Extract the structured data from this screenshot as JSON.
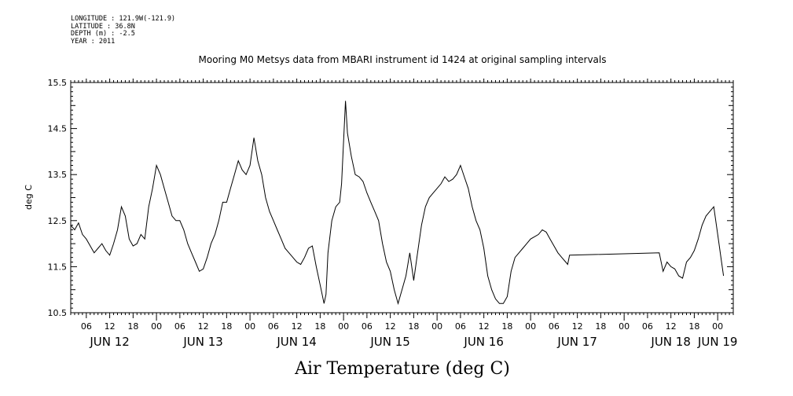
{
  "meta": {
    "longitude": "LONGITUDE : 121.9W(-121.9)",
    "latitude": "LATITUDE : 36.8N",
    "depth": "DEPTH (m) : -2.5",
    "year": "YEAR : 2011"
  },
  "chart_data": {
    "type": "line",
    "title": "Mooring M0 Metsys data from MBARI instrument id 1424 at original sampling intervals",
    "xlabel": "Air Temperature (deg C)",
    "ylabel": "deg C",
    "ylim": [
      10.5,
      15.5
    ],
    "yticks": [
      "10.5",
      "11.5",
      "12.5",
      "13.5",
      "14.5",
      "15.5"
    ],
    "xlim_hours": [
      2,
      172
    ],
    "hour_tick_labels": [
      {
        "h": 6,
        "label": "06"
      },
      {
        "h": 12,
        "label": "12"
      },
      {
        "h": 18,
        "label": "18"
      },
      {
        "h": 24,
        "label": "00"
      },
      {
        "h": 30,
        "label": "06"
      },
      {
        "h": 36,
        "label": "12"
      },
      {
        "h": 42,
        "label": "18"
      },
      {
        "h": 48,
        "label": "00"
      },
      {
        "h": 54,
        "label": "06"
      },
      {
        "h": 60,
        "label": "12"
      },
      {
        "h": 66,
        "label": "18"
      },
      {
        "h": 72,
        "label": "00"
      },
      {
        "h": 78,
        "label": "06"
      },
      {
        "h": 84,
        "label": "12"
      },
      {
        "h": 90,
        "label": "18"
      },
      {
        "h": 96,
        "label": "00"
      },
      {
        "h": 102,
        "label": "06"
      },
      {
        "h": 108,
        "label": "12"
      },
      {
        "h": 114,
        "label": "18"
      },
      {
        "h": 120,
        "label": "00"
      },
      {
        "h": 126,
        "label": "06"
      },
      {
        "h": 132,
        "label": "12"
      },
      {
        "h": 138,
        "label": "18"
      },
      {
        "h": 144,
        "label": "00"
      },
      {
        "h": 150,
        "label": "06"
      },
      {
        "h": 156,
        "label": "12"
      },
      {
        "h": 162,
        "label": "18"
      },
      {
        "h": 168,
        "label": "00"
      }
    ],
    "day_labels": [
      {
        "h": 12,
        "label": "JUN 12"
      },
      {
        "h": 36,
        "label": "JUN 13"
      },
      {
        "h": 60,
        "label": "JUN 14"
      },
      {
        "h": 84,
        "label": "JUN 15"
      },
      {
        "h": 108,
        "label": "JUN 16"
      },
      {
        "h": 132,
        "label": "JUN 17"
      },
      {
        "h": 156,
        "label": "JUN 18"
      },
      {
        "h": 168,
        "label": "JUN 19"
      }
    ],
    "series": [
      {
        "x": [
          2,
          3,
          4,
          5,
          6,
          7,
          8,
          9,
          10,
          11,
          12,
          13,
          14,
          15,
          16,
          17,
          18,
          19,
          20,
          21,
          22,
          23,
          24,
          25,
          26,
          27,
          28,
          29,
          30,
          31,
          32,
          33,
          34,
          35,
          36,
          37,
          38,
          39,
          40,
          41,
          42,
          43,
          44,
          45,
          46,
          47,
          48,
          49,
          50,
          51,
          52,
          53,
          54,
          55,
          56,
          57,
          58,
          59,
          60,
          61,
          62,
          63,
          64,
          65,
          66,
          67,
          67.5,
          68,
          69,
          70,
          71,
          71.5,
          72,
          72.5,
          73,
          74,
          75,
          76,
          77,
          78,
          79,
          80,
          81,
          82,
          83,
          84,
          85,
          86,
          87,
          88,
          89,
          90,
          91,
          92,
          93,
          94,
          95,
          96,
          97,
          98,
          99,
          100,
          101,
          102,
          103,
          104,
          105,
          106,
          107,
          108,
          109,
          110,
          111,
          112,
          113,
          114,
          115,
          116,
          117,
          118,
          119,
          120,
          121,
          122,
          123,
          124,
          125,
          126,
          127,
          128,
          129,
          129.5,
          130,
          153,
          154,
          155,
          156,
          157,
          158,
          159,
          160,
          161,
          162,
          163,
          164,
          165,
          166,
          167,
          168,
          169,
          169.5
        ],
        "y": [
          12.4,
          12.3,
          12.45,
          12.2,
          12.1,
          11.95,
          11.8,
          11.9,
          12.0,
          11.85,
          11.75,
          12.0,
          12.3,
          12.8,
          12.6,
          12.1,
          11.95,
          12.0,
          12.2,
          12.1,
          12.8,
          13.2,
          13.7,
          13.5,
          13.2,
          12.9,
          12.6,
          12.5,
          12.5,
          12.3,
          12.0,
          11.8,
          11.6,
          11.4,
          11.45,
          11.7,
          12.0,
          12.2,
          12.5,
          12.9,
          12.9,
          13.2,
          13.5,
          13.8,
          13.6,
          13.5,
          13.7,
          14.3,
          13.8,
          13.5,
          13.0,
          12.7,
          12.5,
          12.3,
          12.1,
          11.9,
          11.8,
          11.7,
          11.6,
          11.55,
          11.7,
          11.9,
          11.95,
          11.5,
          11.1,
          10.7,
          10.9,
          11.8,
          12.5,
          12.8,
          12.9,
          13.3,
          14.2,
          15.1,
          14.4,
          13.9,
          13.5,
          13.45,
          13.35,
          13.1,
          12.9,
          12.7,
          12.5,
          12.0,
          11.6,
          11.4,
          11.0,
          10.7,
          11.0,
          11.3,
          11.8,
          11.2,
          11.8,
          12.4,
          12.8,
          13.0,
          13.1,
          13.2,
          13.3,
          13.45,
          13.35,
          13.4,
          13.5,
          13.7,
          13.45,
          13.2,
          12.8,
          12.5,
          12.3,
          11.9,
          11.3,
          11.0,
          10.8,
          10.7,
          10.7,
          10.85,
          11.4,
          11.7,
          11.8,
          11.9,
          12.0,
          12.1,
          12.15,
          12.2,
          12.3,
          12.25,
          12.1,
          11.95,
          11.8,
          11.7,
          11.6,
          11.55,
          11.75,
          11.8,
          11.4,
          11.6,
          11.5,
          11.45,
          11.3,
          11.25,
          11.6,
          11.7,
          11.85,
          12.1,
          12.4,
          12.6,
          12.7,
          12.8,
          12.2,
          11.6,
          11.3
        ]
      }
    ]
  }
}
